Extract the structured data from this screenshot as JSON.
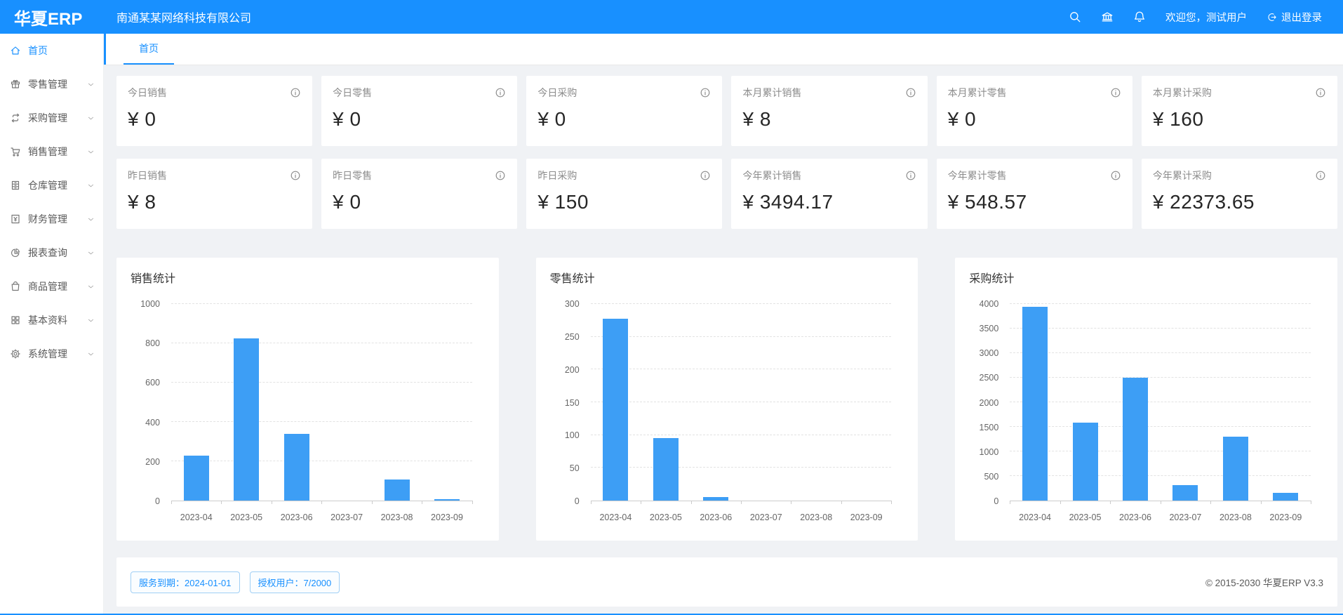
{
  "header": {
    "logo": "华夏ERP",
    "company_name": "南通某某网络科技有限公司",
    "welcome_text": "欢迎您，测试用户",
    "logout_label": "退出登录"
  },
  "sidebar": {
    "items": [
      {
        "key": "home",
        "label": "首页",
        "icon": "home-icon",
        "active": true,
        "expandable": false
      },
      {
        "key": "retail",
        "label": "零售管理",
        "icon": "gift-icon",
        "active": false,
        "expandable": true
      },
      {
        "key": "purchase",
        "label": "采购管理",
        "icon": "swap-icon",
        "active": false,
        "expandable": true
      },
      {
        "key": "sales",
        "label": "销售管理",
        "icon": "cart-icon",
        "active": false,
        "expandable": true
      },
      {
        "key": "warehouse",
        "label": "仓库管理",
        "icon": "warehouse-icon",
        "active": false,
        "expandable": true
      },
      {
        "key": "finance",
        "label": "财务管理",
        "icon": "finance-icon",
        "active": false,
        "expandable": true
      },
      {
        "key": "reports",
        "label": "报表查询",
        "icon": "piechart-icon",
        "active": false,
        "expandable": true
      },
      {
        "key": "goods",
        "label": "商品管理",
        "icon": "bag-icon",
        "active": false,
        "expandable": true
      },
      {
        "key": "basic",
        "label": "基本资料",
        "icon": "appstore-icon",
        "active": false,
        "expandable": true
      },
      {
        "key": "system",
        "label": "系统管理",
        "icon": "gear-icon",
        "active": false,
        "expandable": true
      }
    ]
  },
  "tabs": [
    {
      "label": "首页",
      "active": true
    }
  ],
  "stat_cards": [
    {
      "title": "今日销售",
      "value": "¥ 0"
    },
    {
      "title": "今日零售",
      "value": "¥ 0"
    },
    {
      "title": "今日采购",
      "value": "¥ 0"
    },
    {
      "title": "本月累计销售",
      "value": "¥ 8"
    },
    {
      "title": "本月累计零售",
      "value": "¥ 0"
    },
    {
      "title": "本月累计采购",
      "value": "¥ 160"
    },
    {
      "title": "昨日销售",
      "value": "¥ 8"
    },
    {
      "title": "昨日零售",
      "value": "¥ 0"
    },
    {
      "title": "昨日采购",
      "value": "¥ 150"
    },
    {
      "title": "今年累计销售",
      "value": "¥ 3494.17"
    },
    {
      "title": "今年累计零售",
      "value": "¥ 548.57"
    },
    {
      "title": "今年累计采购",
      "value": "¥ 22373.65"
    }
  ],
  "chart_data": [
    {
      "key": "sales",
      "type": "bar",
      "title": "销售统计",
      "categories": [
        "2023-04",
        "2023-05",
        "2023-06",
        "2023-07",
        "2023-08",
        "2023-09"
      ],
      "values": [
        230,
        825,
        340,
        0,
        108,
        8
      ],
      "ylim": [
        0,
        1000
      ],
      "ytick_step": 200,
      "xlabel": "",
      "ylabel": "",
      "legend": "none",
      "grid": "dashed-horizontal"
    },
    {
      "key": "retail",
      "type": "bar",
      "title": "零售统计",
      "categories": [
        "2023-04",
        "2023-05",
        "2023-06",
        "2023-07",
        "2023-08",
        "2023-09"
      ],
      "values": [
        277,
        95,
        5,
        0,
        0,
        0
      ],
      "ylim": [
        0,
        300
      ],
      "ytick_step": 50,
      "xlabel": "",
      "ylabel": "",
      "legend": "none",
      "grid": "dashed-horizontal"
    },
    {
      "key": "purchase",
      "type": "bar",
      "title": "采购统计",
      "categories": [
        "2023-04",
        "2023-05",
        "2023-06",
        "2023-07",
        "2023-08",
        "2023-09"
      ],
      "values": [
        3950,
        1580,
        2500,
        320,
        1300,
        160
      ],
      "ylim": [
        0,
        4000
      ],
      "ytick_step": 500,
      "xlabel": "",
      "ylabel": "",
      "legend": "none",
      "grid": "dashed-horizontal"
    }
  ],
  "footer": {
    "badges": [
      {
        "label": "服务到期：2024-01-01"
      },
      {
        "label": "授权用户：7/2000"
      }
    ],
    "copyright": "© 2015-2030 华夏ERP V3.3"
  },
  "colors": {
    "header_bg": "#1890ff",
    "accent": "#1890ff",
    "bar": "#3d9ef5",
    "page_bg": "#f0f2f5"
  }
}
